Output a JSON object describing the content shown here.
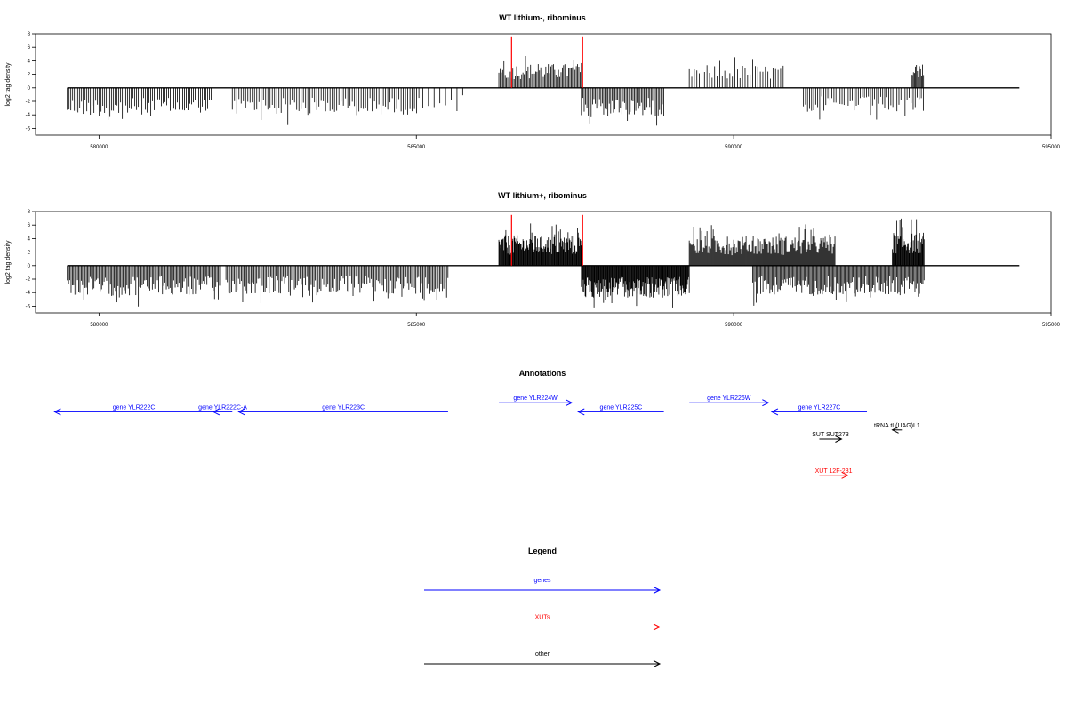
{
  "chart_data": [
    {
      "type": "bar",
      "title": "WT lithium-, ribominus",
      "ylabel": "log2 tag density",
      "xlim": [
        579000,
        595000
      ],
      "ylim": [
        -7,
        8
      ],
      "x_ticks": [
        "580000",
        "585000",
        "590000",
        "595000"
      ],
      "y_ticks": [
        "8",
        "6",
        "4",
        "2",
        "0",
        "-2",
        "-4",
        "-6"
      ],
      "baseline_range": [
        579500,
        594500
      ],
      "highlight_lines": [
        586500,
        587620
      ],
      "highlight_value": 7.5,
      "highlight_color": "#ff0000",
      "series": [
        {
          "strand": "minus",
          "min": 579500,
          "max": 581800,
          "step": 28,
          "amplitude": 4.2
        },
        {
          "strand": "minus",
          "min": 582100,
          "max": 585100,
          "step": 35,
          "amplitude": 4.0
        },
        {
          "strand": "minus",
          "min": 585100,
          "max": 585800,
          "step": 90,
          "amplitude": 3.0
        },
        {
          "strand": "plus",
          "min": 586300,
          "max": 587600,
          "step": 20,
          "amplitude": 3.6
        },
        {
          "strand": "minus",
          "min": 587600,
          "max": 588900,
          "step": 22,
          "amplitude": 4.2
        },
        {
          "strand": "plus",
          "min": 589300,
          "max": 590800,
          "step": 40,
          "amplitude": 3.4
        },
        {
          "strand": "minus",
          "min": 591100,
          "max": 593000,
          "step": 32,
          "amplitude": 3.6
        },
        {
          "strand": "plus",
          "min": 592800,
          "max": 593000,
          "step": 16,
          "amplitude": 3.5
        }
      ]
    },
    {
      "type": "bar",
      "title": "WT lithium+, ribominus",
      "ylabel": "log2 tag density",
      "xlim": [
        579000,
        595000
      ],
      "ylim": [
        -7,
        8
      ],
      "x_ticks": [
        "580000",
        "585000",
        "590000",
        "595000"
      ],
      "y_ticks": [
        "8",
        "6",
        "4",
        "2",
        "0",
        "-2",
        "-4",
        "-6"
      ],
      "baseline_range": [
        579500,
        594500
      ],
      "highlight_lines": [
        586500,
        587620
      ],
      "highlight_value": 7.5,
      "highlight_color": "#ff0000",
      "series": [
        {
          "strand": "minus",
          "min": 579500,
          "max": 581900,
          "step": 20,
          "amplitude": 4.5
        },
        {
          "strand": "minus",
          "min": 582000,
          "max": 585500,
          "step": 22,
          "amplitude": 4.2
        },
        {
          "strand": "plus",
          "min": 586300,
          "max": 587600,
          "step": 10,
          "amplitude": 4.5
        },
        {
          "strand": "minus",
          "min": 587600,
          "max": 589300,
          "step": 10,
          "amplitude": 4.8
        },
        {
          "strand": "plus",
          "min": 589300,
          "max": 591600,
          "step": 14,
          "amplitude": 4.4
        },
        {
          "strand": "minus",
          "min": 590300,
          "max": 593000,
          "step": 18,
          "amplitude": 4.3
        },
        {
          "strand": "plus",
          "min": 592500,
          "max": 593000,
          "step": 10,
          "amplitude": 5.0
        }
      ]
    }
  ],
  "annotations": {
    "title": "Annotations",
    "features": [
      {
        "label": "gene YLR222C",
        "start": 581800,
        "end": 579300,
        "row": 2,
        "color": "#0000ff"
      },
      {
        "label": "gene YLR222C-A",
        "start": 582100,
        "end": 581800,
        "row": 2,
        "color": "#0000ff"
      },
      {
        "label": "gene YLR223C",
        "start": 585500,
        "end": 582200,
        "row": 2,
        "color": "#0000ff"
      },
      {
        "label": "gene YLR224W",
        "start": 586300,
        "end": 587450,
        "row": 1,
        "color": "#0000ff"
      },
      {
        "label": "gene YLR225C",
        "start": 588900,
        "end": 587550,
        "row": 2,
        "color": "#0000ff"
      },
      {
        "label": "gene YLR226W",
        "start": 589300,
        "end": 590550,
        "row": 1,
        "color": "#0000ff"
      },
      {
        "label": "gene YLR227C",
        "start": 592100,
        "end": 590600,
        "row": 2,
        "color": "#0000ff"
      },
      {
        "label": "tRNA tL(UAG)L1",
        "start": 592650,
        "end": 592500,
        "row": 4,
        "color": "#000000"
      },
      {
        "label": "SUT SUT273",
        "start": 591350,
        "end": 591700,
        "row": 5,
        "color": "#000000"
      },
      {
        "label": "XUT 12F-231",
        "start": 591350,
        "end": 591800,
        "row": 9,
        "color": "#ff0000"
      }
    ]
  },
  "legend": {
    "title": "Legend",
    "items": [
      {
        "label": "genes",
        "color": "#0000ff"
      },
      {
        "label": "XUTs",
        "color": "#ff0000"
      },
      {
        "label": "other",
        "color": "#000000"
      }
    ]
  }
}
